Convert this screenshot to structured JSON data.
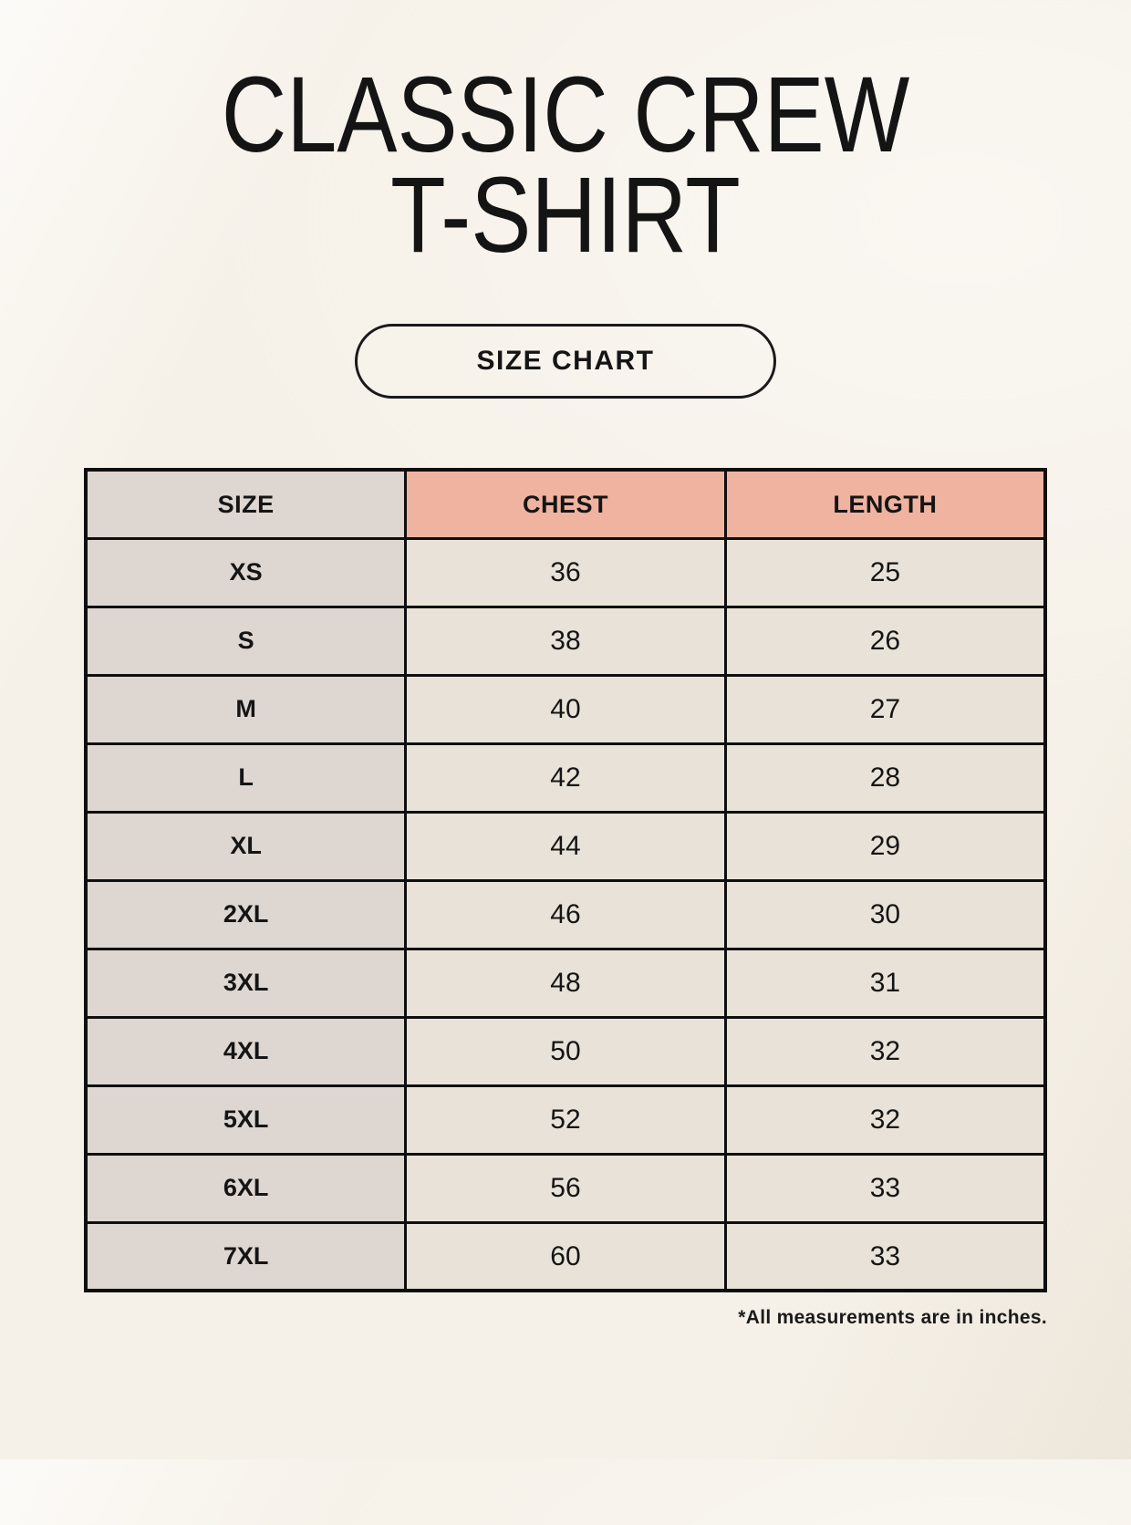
{
  "header": {
    "title_line1": "CLASSIC CREW",
    "title_line2": "T-SHIRT",
    "badge_label": "SIZE CHART"
  },
  "footer": {
    "note": "*All measurements are in inches."
  },
  "colors": {
    "page_background": "#f6f1e8",
    "header_accent": "#efb3a0",
    "size_column": "#ded6d0",
    "data_cell": "#e9e2d8",
    "border": "#0f0f0f",
    "text": "#151515"
  },
  "chart_data": {
    "type": "table",
    "title": "Classic Crew T-Shirt Size Chart",
    "units": "inches",
    "columns": [
      "SIZE",
      "CHEST",
      "LENGTH"
    ],
    "rows": [
      [
        "XS",
        36,
        25
      ],
      [
        "S",
        38,
        26
      ],
      [
        "M",
        40,
        27
      ],
      [
        "L",
        42,
        28
      ],
      [
        "XL",
        44,
        29
      ],
      [
        "2XL",
        46,
        30
      ],
      [
        "3XL",
        48,
        31
      ],
      [
        "4XL",
        50,
        32
      ],
      [
        "5XL",
        52,
        32
      ],
      [
        "6XL",
        56,
        33
      ],
      [
        "7XL",
        60,
        33
      ]
    ]
  }
}
